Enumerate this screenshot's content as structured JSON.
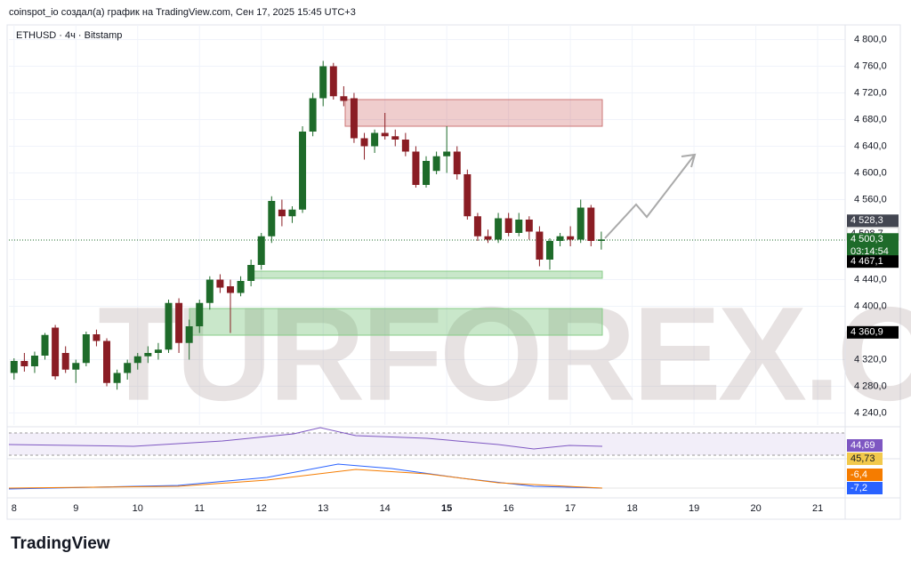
{
  "header": {
    "caption": "coinspot_io создал(а) график на TradingView.com, Сен 17, 2025 15:45 UTC+3",
    "logo": "TradingView"
  },
  "chart_data": {
    "type": "candlestick",
    "title": "ETHUSD · 4ч · Bitstamp",
    "watermark": "TURFOREX.COM",
    "series": [
      {
        "name": "ETHUSD",
        "up_color": "#1e6b2a",
        "down_color": "#8a1d24",
        "open": [
          4300,
          4318,
          4310,
          4326,
          4368,
          4330,
          4305,
          4315,
          4358,
          4348,
          4285,
          4300,
          4315,
          4325,
          4330,
          4335,
          4405,
          4345,
          4370,
          4405,
          4440,
          4430,
          4420,
          4438,
          4462,
          4505,
          4545,
          4535,
          4545,
          4662,
          4712,
          4760,
          4715,
          4712,
          4652,
          4640,
          4660,
          4655,
          4650,
          4632,
          4582,
          4603,
          4625,
          4632,
          4598,
          4535,
          4505,
          4500,
          4532,
          4510,
          4530,
          4512,
          4470,
          4498,
          4505,
          4500,
          4548,
          4498
        ],
        "high": [
          4322,
          4330,
          4332,
          4360,
          4372,
          4340,
          4320,
          4362,
          4365,
          4352,
          4305,
          4320,
          4330,
          4340,
          4345,
          4410,
          4412,
          4380,
          4410,
          4445,
          4448,
          4440,
          4445,
          4470,
          4510,
          4565,
          4560,
          4550,
          4670,
          4720,
          4768,
          4765,
          4730,
          4720,
          4660,
          4665,
          4690,
          4665,
          4660,
          4640,
          4625,
          4632,
          4670,
          4640,
          4605,
          4540,
          4515,
          4540,
          4540,
          4540,
          4535,
          4520,
          4502,
          4510,
          4520,
          4560,
          4552,
          4512
        ],
        "low": [
          4290,
          4302,
          4300,
          4320,
          4290,
          4300,
          4285,
          4310,
          4340,
          4280,
          4275,
          4290,
          4305,
          4315,
          4320,
          4330,
          4330,
          4320,
          4360,
          4395,
          4420,
          4360,
          4415,
          4430,
          4455,
          4495,
          4520,
          4525,
          4540,
          4655,
          4700,
          4710,
          4700,
          4645,
          4620,
          4630,
          4650,
          4640,
          4625,
          4578,
          4578,
          4598,
          4600,
          4590,
          4530,
          4498,
          4495,
          4495,
          4505,
          4505,
          4500,
          4460,
          4455,
          4490,
          4490,
          4495,
          4490,
          4485
        ],
        "close": [
          4318,
          4310,
          4326,
          4357,
          4295,
          4305,
          4315,
          4358,
          4348,
          4285,
          4300,
          4315,
          4325,
          4330,
          4335,
          4405,
          4345,
          4370,
          4405,
          4440,
          4428,
          4420,
          4438,
          4462,
          4505,
          4558,
          4535,
          4545,
          4662,
          4712,
          4760,
          4715,
          4708,
          4652,
          4640,
          4660,
          4655,
          4650,
          4632,
          4582,
          4618,
          4625,
          4632,
          4598,
          4535,
          4505,
          4500,
          4532,
          4510,
          4530,
          4512,
          4470,
          4498,
          4505,
          4500,
          4548,
          4498,
          4500.3
        ]
      }
    ],
    "xlim": [
      -0.5,
      80.67
    ],
    "xticks": [
      {
        "value": 0,
        "label": "8"
      },
      {
        "value": 6,
        "label": "9"
      },
      {
        "value": 12,
        "label": "10"
      },
      {
        "value": 18,
        "label": "11"
      },
      {
        "value": 24,
        "label": "12"
      },
      {
        "value": 30,
        "label": "13"
      },
      {
        "value": 36,
        "label": "14"
      },
      {
        "value": 42,
        "label": "15"
      },
      {
        "value": 48,
        "label": "16"
      },
      {
        "value": 54,
        "label": "17"
      },
      {
        "value": 60,
        "label": "18"
      },
      {
        "value": 66,
        "label": "19"
      },
      {
        "value": 72,
        "label": "20"
      },
      {
        "value": 78,
        "label": "21"
      }
    ],
    "ylim": [
      4222,
      4822
    ],
    "yticks": [
      {
        "value": 4800,
        "label": "4 800,0"
      },
      {
        "value": 4760,
        "label": "4 760,0"
      },
      {
        "value": 4720,
        "label": "4 720,0"
      },
      {
        "value": 4680,
        "label": "4 680,0"
      },
      {
        "value": 4640,
        "label": "4 640,0"
      },
      {
        "value": 4600,
        "label": "4 600,0"
      },
      {
        "value": 4560,
        "label": "4 560,0"
      },
      {
        "value": 4440,
        "label": "4 440,0"
      },
      {
        "value": 4400,
        "label": "4 400,0"
      },
      {
        "value": 4320,
        "label": "4 320,0"
      },
      {
        "value": 4280,
        "label": "4 280,0"
      },
      {
        "value": 4240,
        "label": "4 240,0"
      }
    ],
    "price_labels": [
      {
        "value": 4528.3,
        "label": "4 528,3",
        "color": "#434651"
      },
      {
        "value": 4508.7,
        "label": "4 508,7",
        "color": "#ffffff"
      },
      {
        "value": 4500.3,
        "label": "4 500,3",
        "color": "#1e6b2a"
      },
      {
        "value": 4467.1,
        "label": "4 467,1",
        "color": "#000000"
      },
      {
        "value": 4360.9,
        "label": "4 360,9",
        "color": "#000000"
      }
    ],
    "countdown": "03:14:54",
    "grid": true,
    "rsi_labels": [
      {
        "label": "45,73",
        "color": "#7e57c2"
      },
      {
        "label": "44,69",
        "color": "#f2c94c"
      }
    ],
    "macd_labels": [
      {
        "label": "-6,4",
        "color": "#f57c00"
      },
      {
        "label": "-7,2",
        "color": "#2962ff"
      }
    ]
  }
}
